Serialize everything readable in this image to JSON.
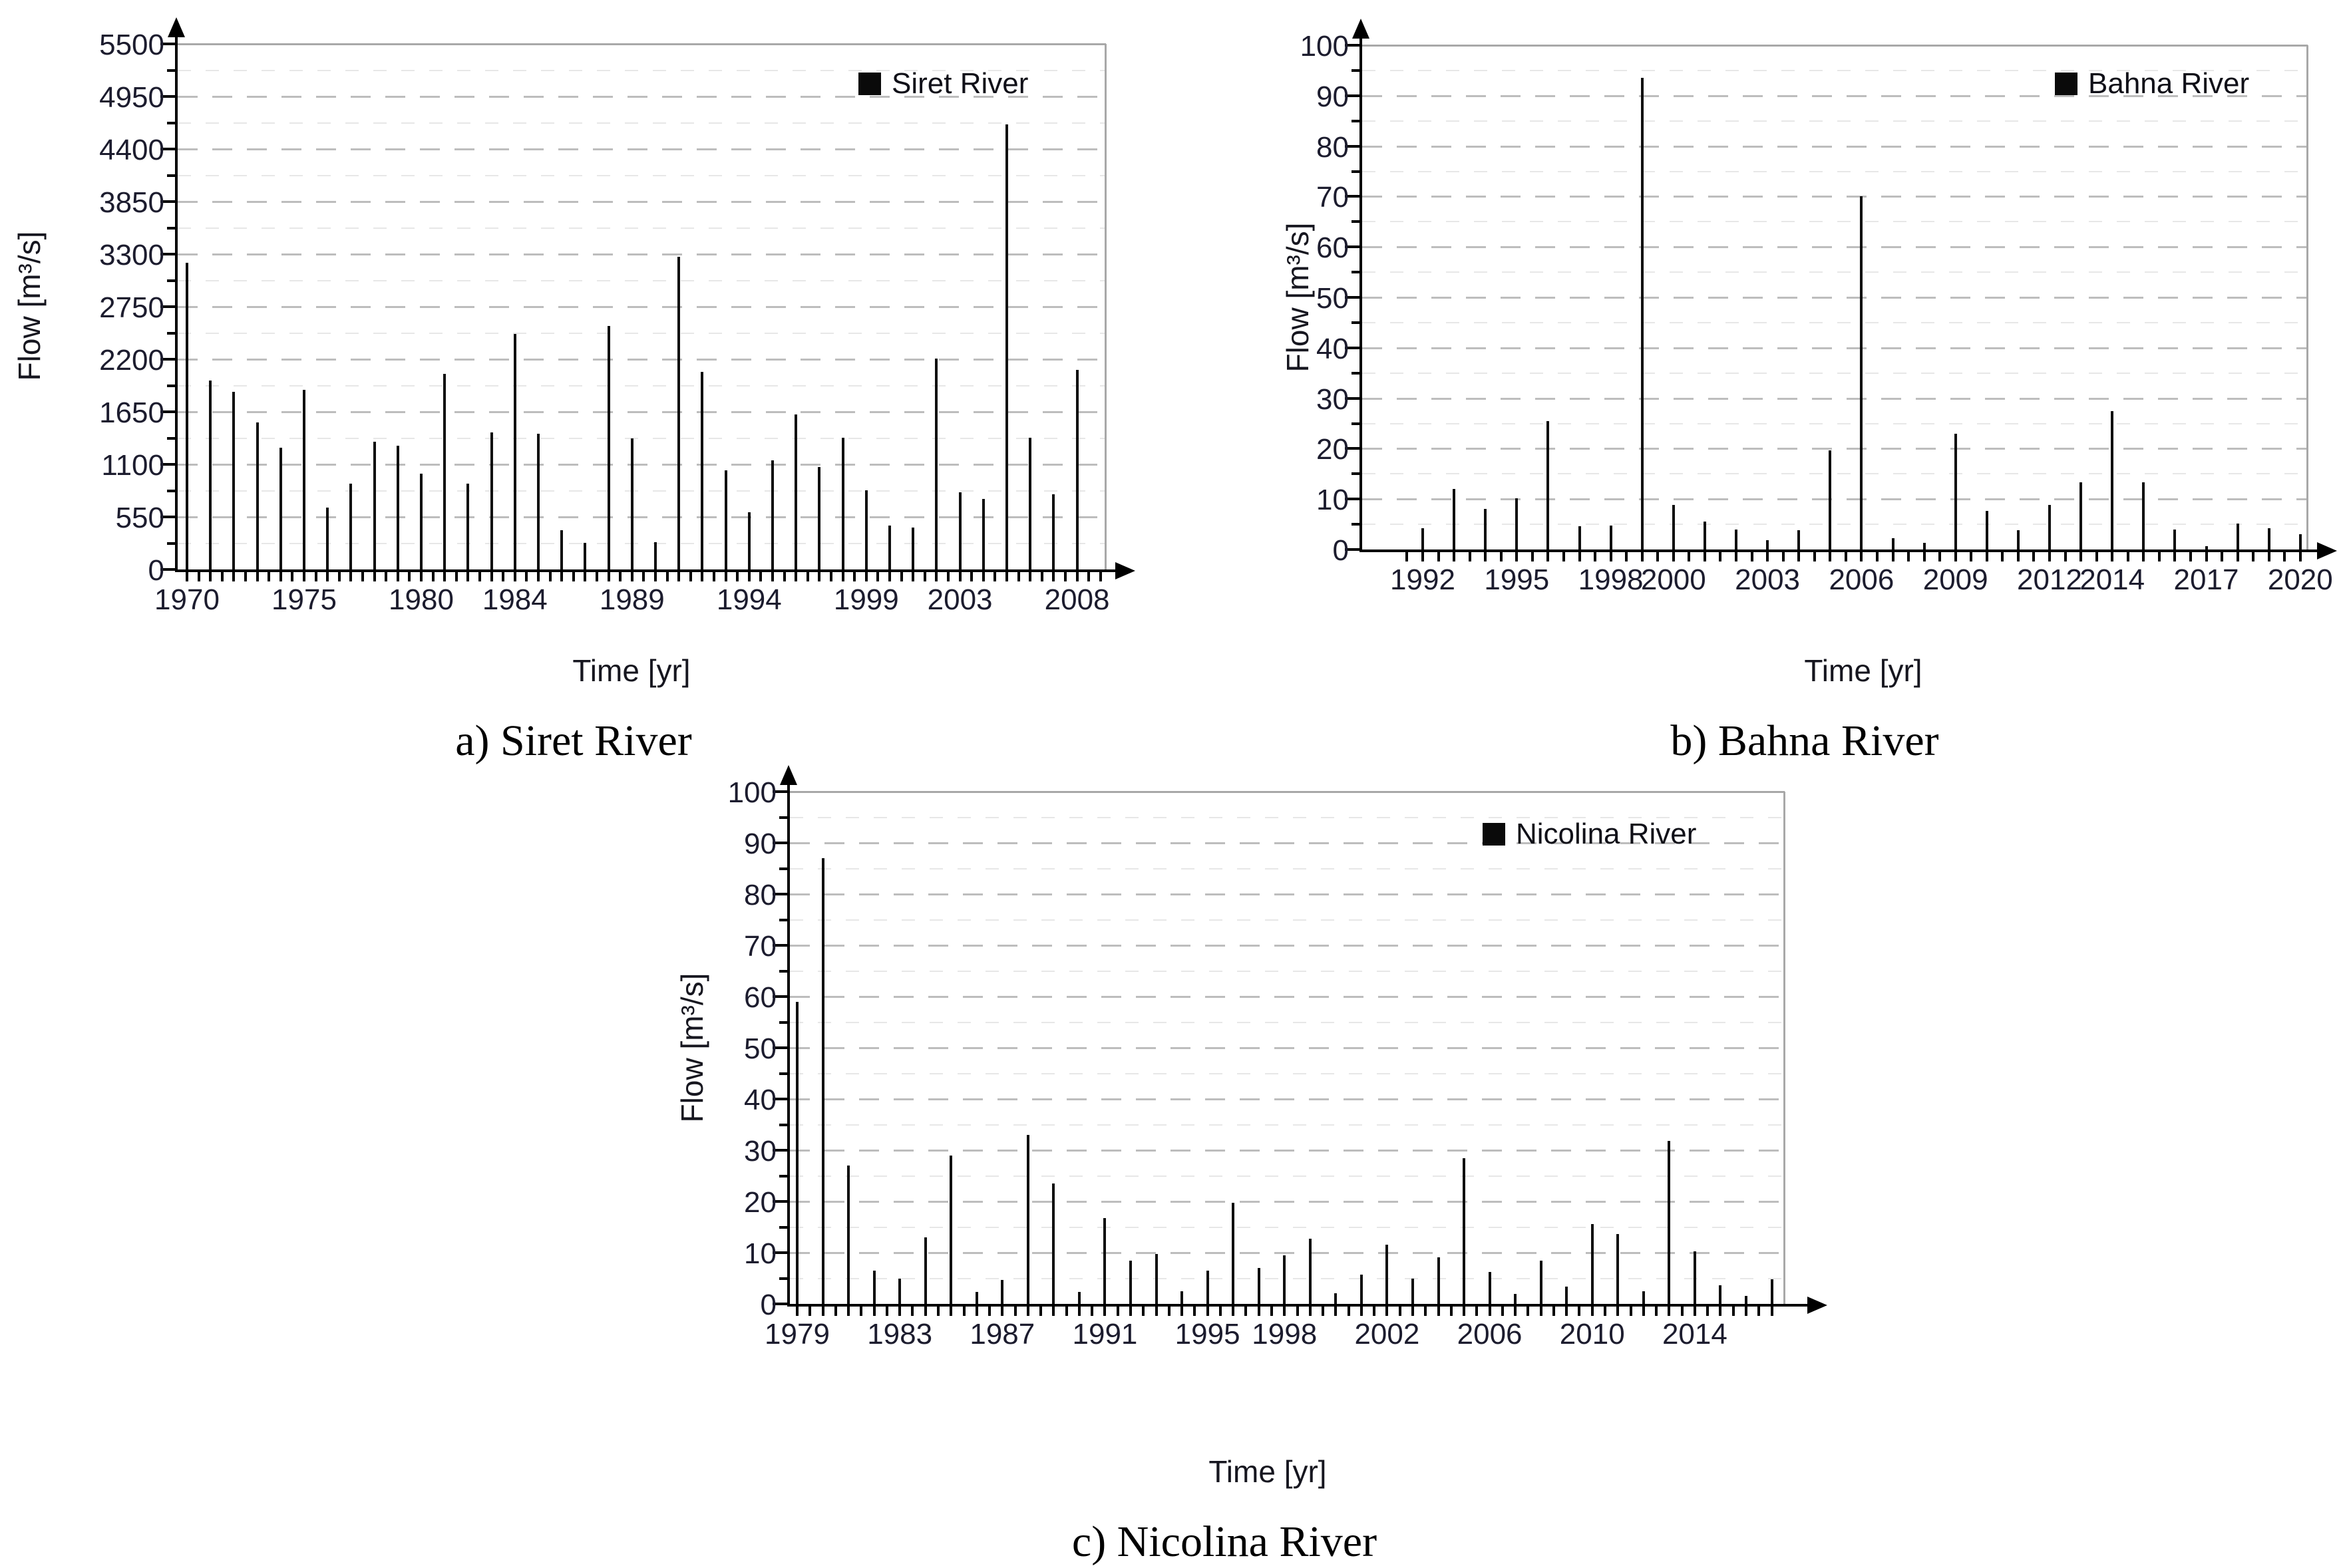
{
  "figure": {
    "background": "#ffffff",
    "x_axis_title": "Time [yr]",
    "y_axis_title": "Flow [m³/s]"
  },
  "colors": {
    "bar": "#0d0d0d",
    "axis": "#000000",
    "tick_label": "#1c1c2e",
    "grid_major": "#bdbdbd",
    "grid_minor": "#e7e7e7",
    "frame": "#a8a8a8",
    "legend_swatch": "#0a0a0a"
  },
  "chart_data": [
    {
      "id": "siret",
      "type": "bar",
      "caption": "a) Siret River",
      "legend": "Siret River",
      "xlabel": "Time [yr]",
      "ylabel": "Flow [m³/s]",
      "ylim": [
        0,
        5500
      ],
      "y_tick_step": 550,
      "y_minor_step": 275,
      "x_tick_labels": [
        "1970",
        "1975",
        "1980",
        "1984",
        "1989",
        "1994",
        "1999",
        "2003",
        "2008"
      ],
      "x": [
        1970,
        1971,
        1972,
        1973,
        1974,
        1975,
        1976,
        1977,
        1978,
        1979,
        1980,
        1981,
        1982,
        1983,
        1984,
        1985,
        1986,
        1987,
        1988,
        1989,
        1990,
        1991,
        1992,
        1993,
        1994,
        1995,
        1996,
        1997,
        1998,
        1999,
        2000,
        2001,
        2002,
        2003,
        2004,
        2005,
        2006,
        2007,
        2008
      ],
      "values": [
        3210,
        1975,
        1860,
        1540,
        1275,
        1880,
        650,
        900,
        1340,
        1295,
        1000,
        2050,
        895,
        1435,
        2465,
        1420,
        410,
        280,
        2550,
        1375,
        285,
        3270,
        2070,
        1040,
        600,
        1140,
        1620,
        1070,
        1380,
        830,
        460,
        440,
        2210,
        810,
        740,
        4660,
        1380,
        790,
        2090
      ],
      "grid": true,
      "legend_position": "top-right"
    },
    {
      "id": "bahna",
      "type": "bar",
      "caption": "b) Bahna River",
      "legend": "Bahna River",
      "xlabel": "Time [yr]",
      "ylabel": "Flow [m³/s]",
      "ylim": [
        0,
        100
      ],
      "y_tick_step": 10,
      "y_minor_step": 5,
      "x_tick_labels": [
        "1992",
        "1995",
        "1998",
        "2000",
        "2003",
        "2006",
        "2009",
        "2012",
        "2014",
        "2017",
        "2020"
      ],
      "x": [
        1992,
        1993,
        1994,
        1995,
        1996,
        1997,
        1998,
        1999,
        2000,
        2001,
        2002,
        2003,
        2004,
        2005,
        2006,
        2007,
        2008,
        2009,
        2010,
        2011,
        2012,
        2013,
        2014,
        2015,
        2016,
        2017,
        2018,
        2019,
        2020
      ],
      "values": [
        4.2,
        12,
        8,
        10.1,
        25.4,
        4.6,
        4.7,
        93.5,
        8.9,
        5.5,
        3.9,
        1.8,
        3.8,
        19.7,
        70,
        2.2,
        1.3,
        22.9,
        7.6,
        3.8,
        8.8,
        13.3,
        27.5,
        13.3,
        3.9,
        0.6,
        5.2,
        4.2,
        3
      ],
      "grid": true,
      "legend_position": "top-right"
    },
    {
      "id": "nicolina",
      "type": "bar",
      "caption": "c) Nicolina River",
      "legend": "Nicolina River",
      "xlabel": "Time [yr]",
      "ylabel": "Flow [m³/s]",
      "ylim": [
        0,
        100
      ],
      "y_tick_step": 10,
      "y_minor_step": 5,
      "x_tick_labels": [
        "1979",
        "1983",
        "1987",
        "1991",
        "1995",
        "1998",
        "2002",
        "2006",
        "2010",
        "2014"
      ],
      "x": [
        1979,
        1980,
        1981,
        1982,
        1983,
        1984,
        1985,
        1986,
        1987,
        1988,
        1989,
        1990,
        1991,
        1992,
        1993,
        1994,
        1995,
        1996,
        1997,
        1998,
        1999,
        2000,
        2001,
        2002,
        2003,
        2004,
        2005,
        2006,
        2007,
        2008,
        2009,
        2010,
        2011,
        2012,
        2013,
        2014,
        2015,
        2016,
        2017
      ],
      "values": [
        59,
        87,
        27,
        6.5,
        5,
        13,
        29,
        2.3,
        4.7,
        33,
        23.5,
        2.3,
        16.7,
        8.5,
        9.8,
        2.5,
        6.5,
        19.8,
        7,
        9.5,
        12.7,
        2.1,
        5.7,
        11.5,
        5,
        9.1,
        28.4,
        6.2,
        2,
        8.5,
        3.4,
        15.6,
        13.6,
        2.5,
        31.8,
        10.2,
        3.6,
        1.6,
        4.8
      ],
      "grid": true,
      "legend_position": "top-right"
    }
  ]
}
